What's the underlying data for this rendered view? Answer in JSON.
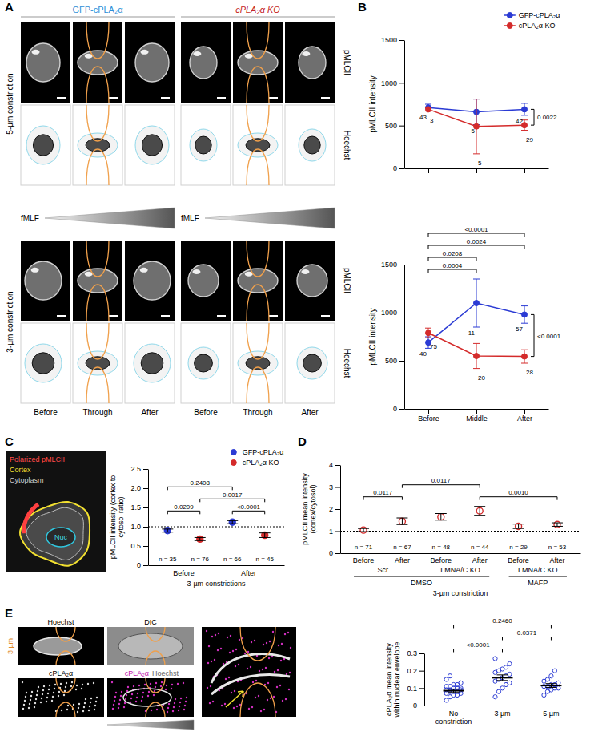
{
  "figure": {
    "panel_letters": [
      "A",
      "B",
      "C",
      "D",
      "E"
    ],
    "panel_a": {
      "columns": [
        "GFP-cPLA₂α",
        "cPLA₂α KO"
      ],
      "rows": [
        "pMLCII",
        "Hoechst"
      ],
      "constrictions": [
        "5-µm constriction",
        "3-µm constriction"
      ],
      "stimulus": "fMLF",
      "stages": [
        "Before",
        "Through",
        "After"
      ]
    },
    "panel_c_schematic": {
      "labels": [
        "Polarized pMLCII",
        "Cortex",
        "Cytoplasm",
        "Nuc"
      ]
    },
    "panel_e_images": {
      "constriction": "3 µm",
      "labels": [
        "Hoechst",
        "DIC",
        "cPLA₂α"
      ],
      "merge_labels": [
        "cPLA₂α",
        "Hoechst"
      ]
    }
  },
  "chart_data": [
    {
      "type": "line",
      "y_label": "pMLCII intensity",
      "categories": [
        "Before",
        "Middle",
        "After"
      ],
      "tick_labels": "y",
      "ylim": [
        0,
        1500
      ],
      "yticks": [
        0,
        500,
        1000,
        1500
      ],
      "legend": "top-right",
      "series": [
        {
          "name": "GFP-cPLA₂α",
          "color": "#2b3bd4",
          "marker": "circle",
          "values": [
            710,
            660,
            690
          ],
          "errors": [
            40,
            150,
            70
          ],
          "n": [
            43,
            5,
            42
          ]
        },
        {
          "name": "cPLA₂α KO",
          "color": "#d42b2b",
          "marker": "circle",
          "values": [
            690,
            490,
            505
          ],
          "errors": [
            20,
            320,
            60
          ],
          "n": [
            3,
            5,
            29
          ]
        }
      ],
      "comparisons": [
        {
          "from": [
            "After",
            "GFP-cPLA₂α"
          ],
          "to": [
            "After",
            "cPLA₂α KO"
          ],
          "label": "0.0022"
        }
      ]
    },
    {
      "type": "line",
      "y_label": "pMLCII intensity",
      "categories": [
        "Before",
        "Middle",
        "After"
      ],
      "ylim": [
        0,
        1500
      ],
      "yticks": [
        0,
        500,
        1000,
        1500
      ],
      "series": [
        {
          "name": "GFP-cPLA₂α",
          "color": "#2b3bd4",
          "marker": "circle",
          "values": [
            690,
            1100,
            980
          ],
          "errors": [
            60,
            250,
            90
          ],
          "n": [
            40,
            11,
            57
          ]
        },
        {
          "name": "cPLA₂α KO",
          "color": "#d42b2b",
          "marker": "circle",
          "values": [
            790,
            550,
            545
          ],
          "errors": [
            50,
            130,
            70
          ],
          "n": [
            75,
            20,
            28
          ]
        }
      ],
      "comparisons": [
        {
          "from": [
            "Before",
            "cPLA₂α KO"
          ],
          "to": [
            "Middle",
            "cPLA₂α KO"
          ],
          "label": "0.0004"
        },
        {
          "from": [
            "Before",
            "GFP-cPLA₂α"
          ],
          "to": [
            "Middle",
            "GFP-cPLA₂α"
          ],
          "label": "0.0208"
        },
        {
          "from": [
            "Before",
            "cPLA₂α KO"
          ],
          "to": [
            "After",
            "cPLA₂α KO"
          ],
          "label": "0.0024"
        },
        {
          "from": [
            "Before",
            "GFP-cPLA₂α"
          ],
          "to": [
            "After",
            "GFP-cPLA₂α"
          ],
          "label": "<0.0001"
        },
        {
          "from": [
            "After",
            "GFP-cPLA₂α"
          ],
          "to": [
            "After",
            "cPLA₂α KO"
          ],
          "label": "<0.0001"
        }
      ]
    },
    {
      "type": "dot",
      "y_label": "pMLCII intensity (cortex to cytosol ratio)",
      "x_label": "3-µm constrictions",
      "categories": [
        "Before",
        "After"
      ],
      "ylim": [
        0,
        2.5
      ],
      "yticks": [
        0,
        0.5,
        {
          "value": 1,
          "label": "1.0"
        },
        1.5,
        {
          "value": 2,
          "label": "2.0"
        },
        2.5
      ],
      "reference_line": 1,
      "legend": "top-right",
      "series": [
        {
          "name": "GFP-cPLA₂α",
          "color": "#2b3bd4",
          "marker": "circle",
          "values": [
            0.9,
            1.12
          ],
          "errors": [
            0.04,
            0.04
          ],
          "n_labels": [
            "n = 35",
            "n = 66"
          ]
        },
        {
          "name": "cPLA₂α KO",
          "color": "#d42b2b",
          "marker": "circle",
          "values": [
            0.68,
            0.78
          ],
          "errors": [
            0.04,
            0.06
          ],
          "n_labels": [
            "n = 76",
            "n = 45"
          ]
        }
      ],
      "comparisons": [
        {
          "from": [
            "Before",
            "GFP-cPLA₂α"
          ],
          "to": [
            "Before",
            "cPLA₂α KO"
          ],
          "label": "0.0209"
        },
        {
          "from": [
            "After",
            "GFP-cPLA₂α"
          ],
          "to": [
            "After",
            "cPLA₂α KO"
          ],
          "label": "<0.0001"
        },
        {
          "from": [
            "Before",
            "cPLA₂α KO"
          ],
          "to": [
            "After",
            "cPLA₂α KO"
          ],
          "label": "0.0017"
        },
        {
          "from": [
            "Before",
            "GFP-cPLA₂α"
          ],
          "to": [
            "After",
            "GFP-cPLA₂α"
          ],
          "label": "0.2408"
        }
      ]
    },
    {
      "type": "dot",
      "y_label": "pMLCII mean intensity (cortex/cytosol)",
      "x_label": "3-µm constriction",
      "categories": [
        "Before",
        "After"
      ],
      "ylim": [
        0,
        4
      ],
      "yticks": [
        0,
        1,
        2,
        3,
        4
      ],
      "reference_line": 1,
      "color": "#d42b2b",
      "marker": "open-circle",
      "series": [
        {
          "name": "Scr",
          "treatment": "DMSO",
          "values": [
            1.05,
            1.45
          ],
          "errors": [
            0.07,
            0.15
          ],
          "n_labels": [
            "n = 71",
            "n = 67"
          ]
        },
        {
          "name": "LMNA/C KO",
          "treatment": "DMSO",
          "values": [
            1.65,
            1.92
          ],
          "errors": [
            0.15,
            0.2
          ],
          "n_labels": [
            "n = 48",
            "n = 44"
          ]
        },
        {
          "name": "LMNA/C KO",
          "treatment": "MAFP",
          "values": [
            1.22,
            1.3
          ],
          "errors": [
            0.1,
            0.08
          ],
          "n_labels": [
            "n = 29",
            "n = 53"
          ]
        }
      ],
      "comparisons": [
        {
          "from": [
            "Scr",
            "DMSO",
            "Before"
          ],
          "to": [
            "Scr",
            "DMSO",
            "After"
          ],
          "label": "0.0117"
        },
        {
          "from": [
            "Scr",
            "DMSO",
            "After"
          ],
          "to": [
            "LMNA/C KO",
            "DMSO",
            "After"
          ],
          "label": "0.0117"
        },
        {
          "from": [
            "LMNA/C KO",
            "DMSO",
            "After"
          ],
          "to": [
            "LMNA/C KO",
            "MAFP",
            "After"
          ],
          "label": "0.0010"
        }
      ]
    },
    {
      "type": "dot",
      "y_label": "cPLA₂α mean intensity within nuclear envelope",
      "categories": [
        "No constriction",
        "3 µm",
        "5 µm"
      ],
      "ylim": [
        0,
        0.3
      ],
      "yticks": [
        0,
        0.1,
        0.2,
        0.3
      ],
      "color": "#2b3bd4",
      "marker": "open-circle",
      "values": [
        0.085,
        0.16,
        0.115
      ],
      "errors": [
        0.01,
        0.016,
        0.011
      ],
      "points": [
        [
          0.03,
          0.05,
          0.06,
          0.06,
          0.07,
          0.07,
          0.08,
          0.08,
          0.08,
          0.09,
          0.09,
          0.09,
          0.1,
          0.1,
          0.1,
          0.11,
          0.11,
          0.12,
          0.12,
          0.13,
          0.15,
          0.17
        ],
        [
          0.05,
          0.08,
          0.1,
          0.12,
          0.13,
          0.14,
          0.15,
          0.16,
          0.17,
          0.18,
          0.19,
          0.2,
          0.21,
          0.22,
          0.24,
          0.27
        ],
        [
          0.06,
          0.08,
          0.09,
          0.1,
          0.1,
          0.11,
          0.11,
          0.12,
          0.12,
          0.13,
          0.14,
          0.15,
          0.17,
          0.2
        ]
      ],
      "comparisons": [
        {
          "from": [
            "No constriction"
          ],
          "to": [
            "3 µm"
          ],
          "label": "<0.0001"
        },
        {
          "from": [
            "3 µm"
          ],
          "to": [
            "5 µm"
          ],
          "label": "0.0371"
        },
        {
          "from": [
            "No constriction"
          ],
          "to": [
            "5 µm"
          ],
          "label": "0.2460"
        }
      ]
    }
  ]
}
